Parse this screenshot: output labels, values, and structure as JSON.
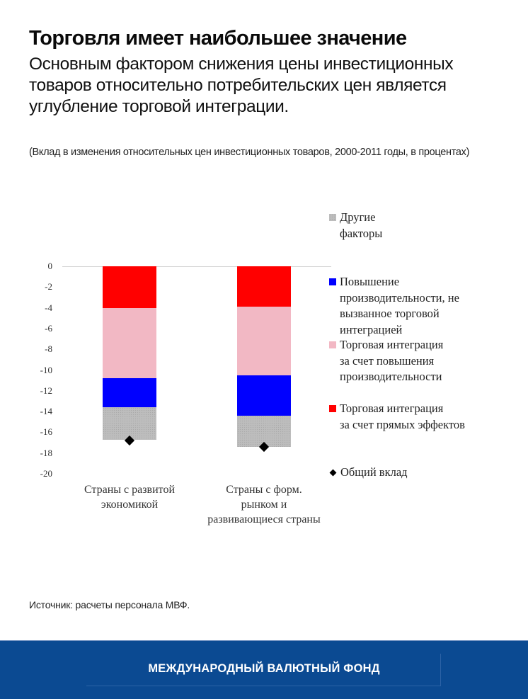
{
  "header": {
    "title": "Торговля имеет наибольшее значение",
    "subtitle": "Основным фактором снижения цены инвестиционных товаров относительно потребительских цен является углубление торговой интеграции.",
    "note": "(Вклад в изменения относительных цен инвестиционных товаров, 2000-2011 годы, в процентах)"
  },
  "source": "Источник: расчеты персонала МВФ.",
  "footer": {
    "org_name": "МЕЖДУНАРОДНЫЙ ВАЛЮТНЫЙ ФОНД",
    "background": "#0b4a92"
  },
  "chart_data": {
    "type": "bar",
    "stacked": true,
    "title": "Торговля имеет наибольшее значение",
    "subtitle": "(Вклад в изменения относительных цен инвестиционных товаров, 2000-2011 годы, в процентах)",
    "xlabel": "",
    "ylabel": "",
    "ylim": [
      -20,
      0
    ],
    "yticks": [
      "0",
      "-2",
      "-4",
      "-6",
      "-8",
      "-10",
      "-12",
      "-14",
      "-16",
      "-18",
      "-20"
    ],
    "grid": false,
    "legend_position": "right",
    "categories": [
      "Страны с развитой экономикой",
      "Страны с форм. рынком и развивающиеся страны"
    ],
    "category_lines": [
      [
        "Страны с развитой",
        "экономикой"
      ],
      [
        "Страны с форм.",
        "рынком и",
        "развивающиеся страны"
      ]
    ],
    "series": [
      {
        "name": "Торговая интеграция за счет прямых эффектов",
        "color": "#ff0000",
        "values": [
          -4.0,
          -3.9
        ]
      },
      {
        "name": "Торговая интеграция за счет повышения производительности",
        "color": "#f2b8c4",
        "values": [
          -6.8,
          -6.6
        ]
      },
      {
        "name": "Повышение производительности, не вызванное торговой интеграцией",
        "color": "#0000ff",
        "values": [
          -2.8,
          -3.9
        ]
      },
      {
        "name": "Другие факторы",
        "color": "#bdbdbd",
        "values": [
          -3.1,
          -3.0
        ]
      }
    ],
    "markers": {
      "name": "Общий вклад",
      "shape": "diamond",
      "color": "#000000",
      "values": [
        -16.8,
        -17.4
      ]
    },
    "legend": [
      {
        "label_lines": [
          "Другие",
          "факторы"
        ],
        "color": "#bdbdbd",
        "shape": "square"
      },
      {
        "label_lines": [
          "Повышение",
          "производительности, не",
          "вызванное торговой",
          "интеграцией"
        ],
        "color": "#0000ff",
        "shape": "square"
      },
      {
        "label_lines": [
          "Торговая интеграция",
          "за счет повышения",
          "производительности"
        ],
        "color": "#f2b8c4",
        "shape": "square"
      },
      {
        "label_lines": [
          "Торговая интеграция",
          "за счет прямых эффектов"
        ],
        "color": "#ff0000",
        "shape": "square"
      },
      {
        "label_lines": [
          "Общий вклад"
        ],
        "color": "#000000",
        "shape": "diamond"
      }
    ]
  }
}
